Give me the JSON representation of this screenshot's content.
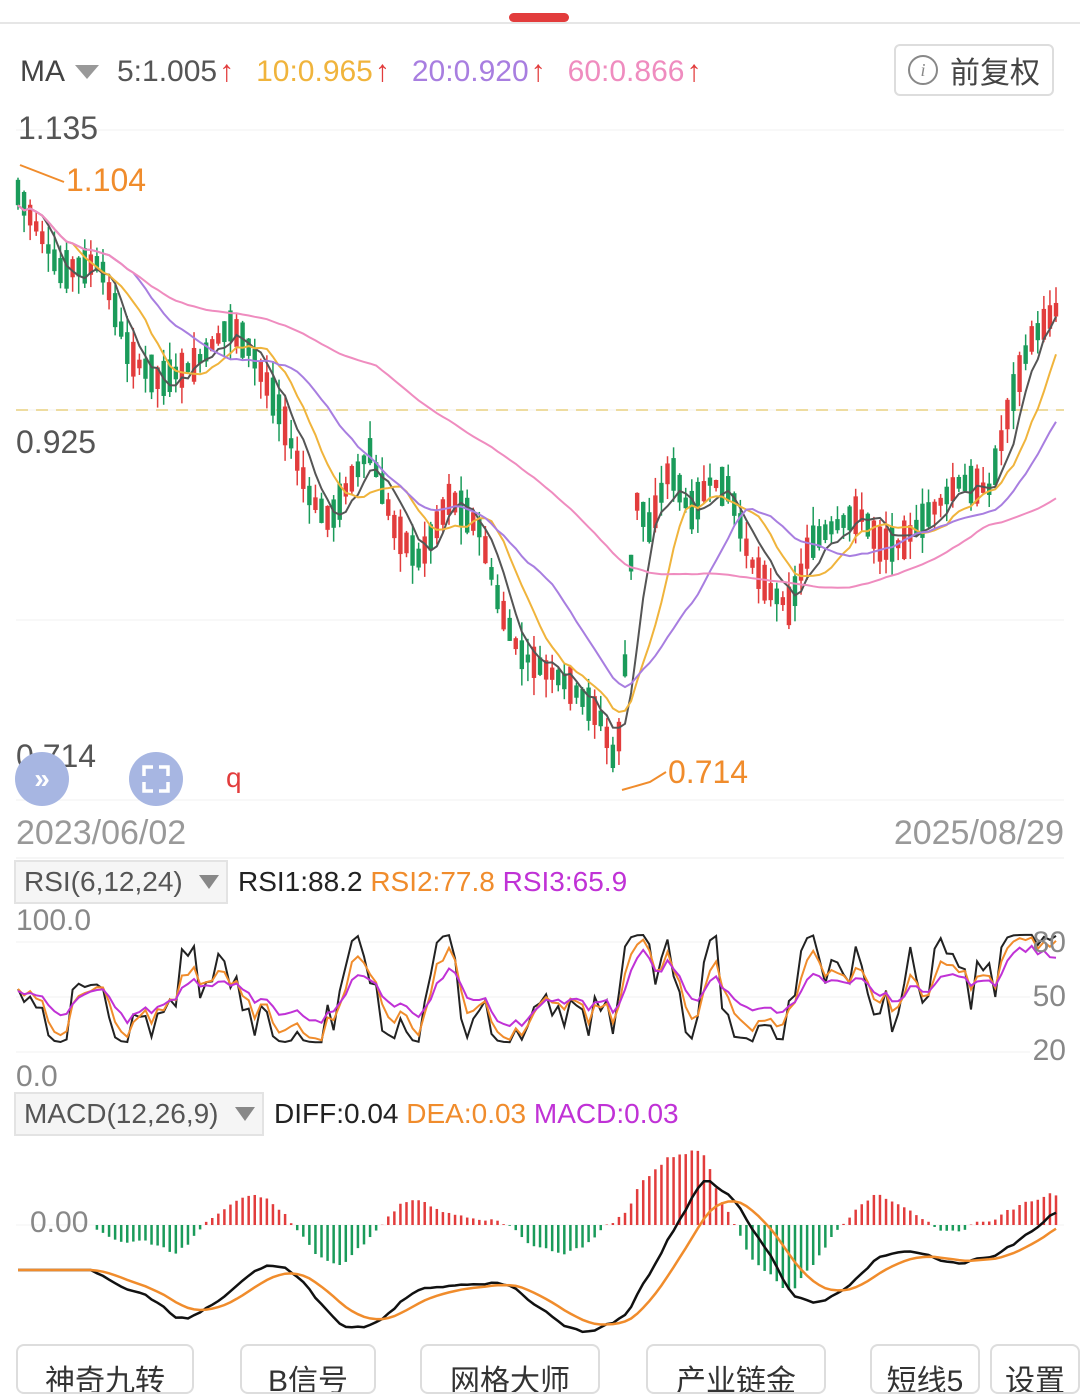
{
  "header": {
    "ma_label": "MA",
    "ma_values": [
      {
        "text": "5:1.005",
        "color": "#555555"
      },
      {
        "text": "10:0.965",
        "color": "#f0b43c"
      },
      {
        "text": "20:0.920",
        "color": "#a87ee0"
      },
      {
        "text": "60:0.866",
        "color": "#ef8cbf"
      }
    ],
    "adjust_button": "前复权"
  },
  "price_chart": {
    "high_label": "1.135",
    "max_marker": "1.104",
    "mid_label": "0.925",
    "low_label": "0.714",
    "min_marker": "0.714",
    "q_label": "q",
    "start_date": "2023/06/02",
    "end_date": "2025/08/29"
  },
  "rsi": {
    "selector": "RSI(6,12,24)",
    "rsi1": "RSI1:88.2",
    "rsi2": "RSI2:77.8",
    "rsi3": "RSI3:65.9",
    "axis_top": "100.0",
    "axis_bottom": "0.0",
    "levels": [
      "80",
      "50",
      "20"
    ]
  },
  "macd": {
    "selector": "MACD(12,26,9)",
    "diff": "DIFF:0.04",
    "dea": "DEA:0.03",
    "macd": "MACD:0.03",
    "zero_label": "0.00"
  },
  "bottom_tabs": [
    "神奇九转",
    "B信号",
    "网格大师",
    "产业链金",
    "短线5",
    "设置"
  ],
  "colors": {
    "up": "#e23c3c",
    "down": "#1a9b5a",
    "ma5": "#555555",
    "ma10": "#f0b43c",
    "ma20": "#a87ee0",
    "ma60": "#ef8cbf",
    "rsi1": "#222222",
    "rsi2": "#f08c2c",
    "rsi3": "#c032d6"
  },
  "chart_data": {
    "type": "candlestick",
    "range": [
      "2023/06/02",
      "2025/08/29"
    ],
    "price_high": 1.135,
    "price_low": 0.714,
    "price_ref": 0.925,
    "ma_last": {
      "MA5": 1.005,
      "MA10": 0.965,
      "MA20": 0.92,
      "MA60": 0.866
    },
    "rsi_last": {
      "RSI1": 88.2,
      "RSI2": 77.8,
      "RSI3": 65.9
    },
    "macd_last": {
      "DIFF": 0.04,
      "DEA": 0.03,
      "MACD": 0.03
    }
  }
}
